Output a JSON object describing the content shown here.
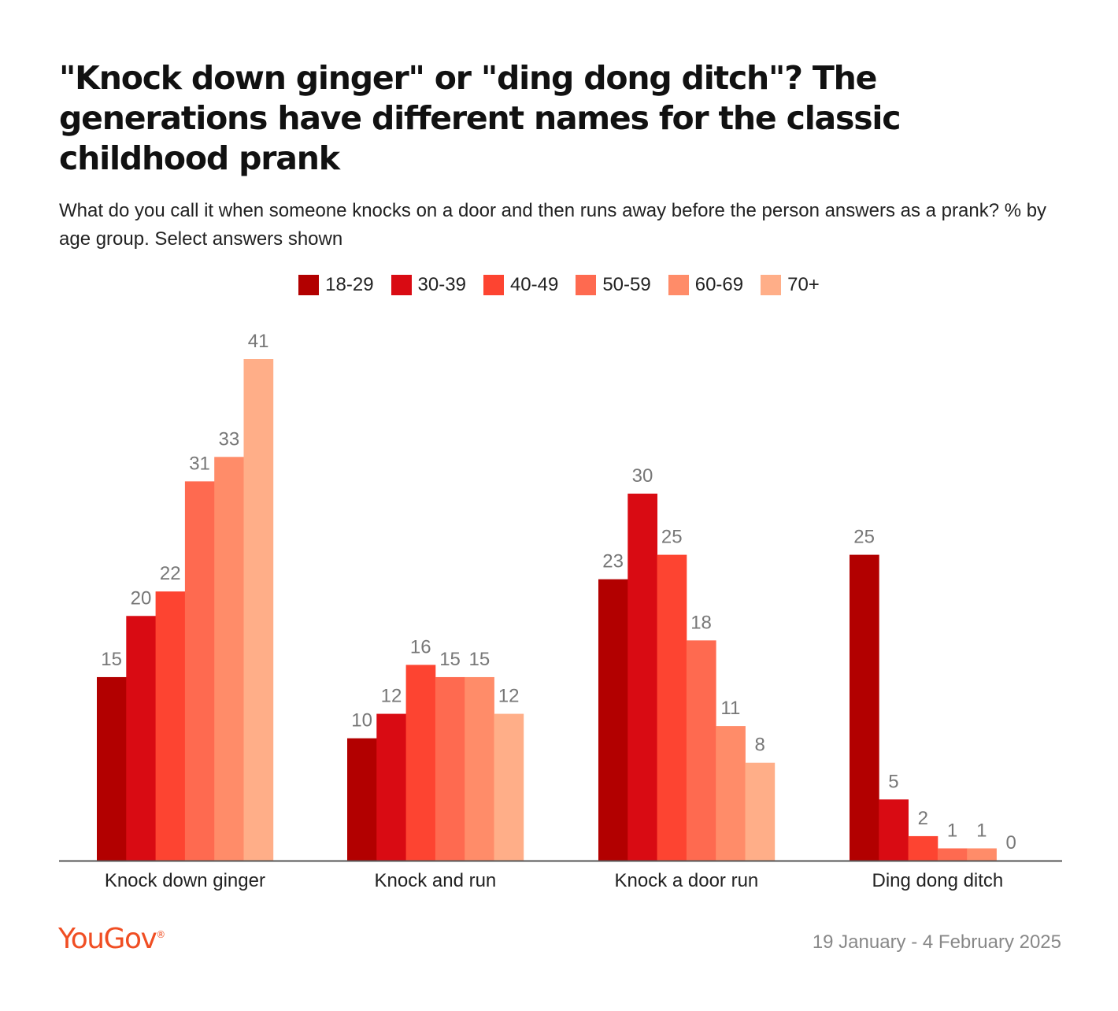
{
  "title": "\"Knock down ginger\" or \"ding dong ditch\"? The generations have different names for the classic childhood prank",
  "subtitle": "What do you call it when someone knocks on a door and then runs away before the person answers as a prank? % by age group. Select answers shown",
  "footer": {
    "logo": "YouGov",
    "logo_mark": "®",
    "date_range": "19 January - 4 February 2025"
  },
  "colors": {
    "series": [
      "#b20000",
      "#d90b13",
      "#fd4431",
      "#fe6a50",
      "#ff8c69",
      "#ffae88"
    ],
    "axis": "#555555",
    "logo": "#f04e23"
  },
  "chart_data": {
    "type": "bar",
    "categories": [
      "Knock down ginger",
      "Knock and run",
      "Knock a door run",
      "Ding dong ditch"
    ],
    "series": [
      {
        "name": "18-29",
        "values": [
          15,
          10,
          23,
          25
        ]
      },
      {
        "name": "30-39",
        "values": [
          20,
          12,
          30,
          5
        ]
      },
      {
        "name": "40-49",
        "values": [
          22,
          16,
          25,
          2
        ]
      },
      {
        "name": "50-59",
        "values": [
          31,
          15,
          18,
          1
        ]
      },
      {
        "name": "60-69",
        "values": [
          33,
          15,
          11,
          1
        ]
      },
      {
        "name": "70+",
        "values": [
          41,
          12,
          8,
          0
        ]
      }
    ],
    "ylim": [
      0,
      41
    ],
    "legend_position": "top-center",
    "grid": false,
    "xlabel": "",
    "ylabel": ""
  }
}
